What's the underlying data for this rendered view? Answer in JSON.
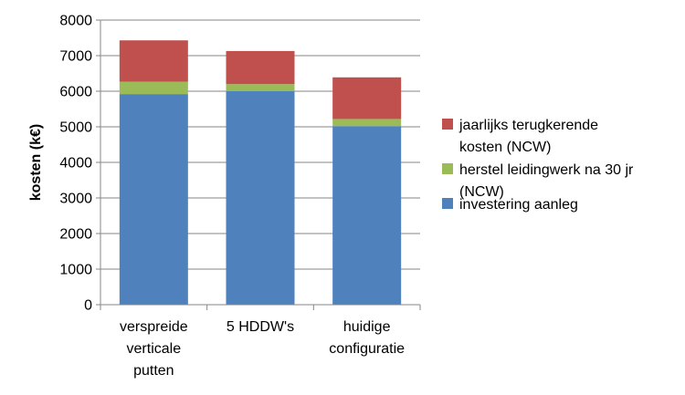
{
  "chart_data": {
    "type": "bar",
    "stacked": true,
    "title": "",
    "xlabel": "",
    "ylabel": "kosten (k€)",
    "ylim": [
      0,
      8000
    ],
    "yticks": [
      0,
      1000,
      2000,
      3000,
      4000,
      5000,
      6000,
      7000,
      8000
    ],
    "grid": true,
    "legend_position": "right",
    "categories": [
      [
        "verspreide",
        "verticale",
        "putten"
      ],
      [
        "5 HDDW's"
      ],
      [
        "huidige",
        "configuratie"
      ]
    ],
    "series": [
      {
        "name": "investering aanleg",
        "legend_lines": [
          "investering aanleg"
        ],
        "color": "#4F81BD",
        "values": [
          5920,
          6000,
          5020
        ]
      },
      {
        "name": "herstel leidingwerk na 30 jr (NCW)",
        "legend_lines": [
          "herstel leidingwerk na 30 jr",
          "(NCW)"
        ],
        "color": "#9BBB59",
        "values": [
          350,
          200,
          200
        ]
      },
      {
        "name": "jaarlijks terugkerende kosten (NCW)",
        "legend_lines": [
          "jaarlijks terugkerende",
          "kosten (NCW)"
        ],
        "color": "#C0504D",
        "values": [
          1160,
          930,
          1170
        ]
      }
    ]
  }
}
